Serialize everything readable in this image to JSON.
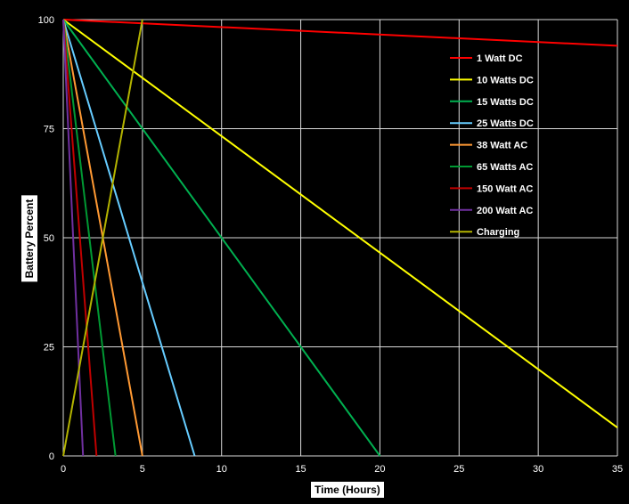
{
  "chart_data": {
    "type": "line",
    "title": "",
    "xlabel": "Time (Hours)",
    "ylabel": "Battery Percent",
    "xlim": [
      0,
      35
    ],
    "ylim": [
      0,
      100
    ],
    "xticks": [
      0,
      5,
      10,
      15,
      20,
      25,
      30,
      35
    ],
    "yticks": [
      0,
      25,
      50,
      75,
      100
    ],
    "grid": true,
    "legend_position": "top-right",
    "background": "#000000",
    "gridColor": "#d9d9d9",
    "series": [
      {
        "name": "1 Watt DC",
        "color": "#ff0000",
        "x": [
          0,
          35
        ],
        "y": [
          100,
          94
        ]
      },
      {
        "name": "10 Watts DC",
        "color": "#ffff00",
        "x": [
          0,
          35
        ],
        "y": [
          100,
          6.5
        ]
      },
      {
        "name": "15 Watts DC",
        "color": "#00b050",
        "x": [
          0,
          20
        ],
        "y": [
          100,
          0
        ]
      },
      {
        "name": "25 Watts DC",
        "color": "#66ccff",
        "x": [
          0,
          8.3
        ],
        "y": [
          100,
          0
        ]
      },
      {
        "name": "38 Watt AC",
        "color": "#ff9933",
        "x": [
          0,
          5
        ],
        "y": [
          100,
          0
        ]
      },
      {
        "name": "65 Watts AC",
        "color": "#009933",
        "x": [
          0,
          3.3
        ],
        "y": [
          100,
          0
        ]
      },
      {
        "name": "150 Watt AC",
        "color": "#c00000",
        "x": [
          0,
          2.1
        ],
        "y": [
          100,
          0
        ]
      },
      {
        "name": "200 Watt AC",
        "color": "#7030a0",
        "x": [
          0,
          1.25
        ],
        "y": [
          100,
          0
        ]
      },
      {
        "name": "Charging",
        "color": "#b3b300",
        "x": [
          0,
          5
        ],
        "y": [
          0,
          100
        ]
      }
    ]
  }
}
